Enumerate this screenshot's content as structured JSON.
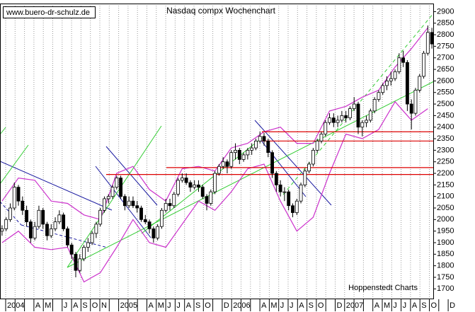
{
  "chart_data": {
    "type": "candlestick",
    "title": "Nasdaq compx Wochenchart",
    "watermark": "www.buero-dr-schulz.de",
    "source": "Hoppenstedt Charts",
    "categories": [
      "2004",
      null,
      null,
      "A",
      "M",
      null,
      "J",
      "A",
      "S",
      "O",
      "N",
      null,
      "2005",
      null,
      null,
      "A",
      "M",
      "J",
      "J",
      "A",
      "S",
      "O",
      null,
      "D",
      "2006",
      null,
      null,
      "A",
      "M",
      "J",
      "J",
      "A",
      "S",
      "O",
      null,
      "D",
      "2007",
      null,
      null,
      "A",
      "M",
      "J",
      "J",
      "A",
      "S",
      "O",
      null,
      "D"
    ],
    "ylim": [
      1655,
      2935
    ],
    "yticks": [
      1700,
      1750,
      1800,
      1850,
      1900,
      1950,
      2000,
      2050,
      2100,
      2150,
      2200,
      2250,
      2300,
      2350,
      2400,
      2450,
      2500,
      2550,
      2600,
      2650,
      2700,
      2750,
      2800,
      2850,
      2900
    ],
    "grid": true,
    "up_color": "#ffffff",
    "down_color": "#000000",
    "band_color": "#cc33cc",
    "level_color": "#dd0000",
    "ohlc": [
      [
        1950,
        1975,
        1930,
        1960
      ],
      [
        1960,
        2010,
        1950,
        2000
      ],
      [
        2000,
        2070,
        1990,
        2050
      ],
      [
        2050,
        2160,
        2040,
        2140
      ],
      [
        2140,
        2150,
        2060,
        2080
      ],
      [
        2080,
        2100,
        2020,
        2040
      ],
      [
        2040,
        2060,
        1970,
        1990
      ],
      [
        1990,
        2000,
        1900,
        1920
      ],
      [
        1920,
        1990,
        1910,
        1970
      ],
      [
        1970,
        2060,
        1960,
        2040
      ],
      [
        2040,
        2050,
        1960,
        1980
      ],
      [
        1980,
        1990,
        1910,
        1930
      ],
      [
        1930,
        1980,
        1920,
        1960
      ],
      [
        1960,
        2010,
        1950,
        1990
      ],
      [
        1990,
        2040,
        1980,
        2020
      ],
      [
        2020,
        2030,
        1950,
        1960
      ],
      [
        1960,
        1970,
        1880,
        1890
      ],
      [
        1890,
        1900,
        1830,
        1850
      ],
      [
        1850,
        1860,
        1750,
        1780
      ],
      [
        1780,
        1850,
        1770,
        1830
      ],
      [
        1830,
        1890,
        1820,
        1880
      ],
      [
        1880,
        1920,
        1860,
        1900
      ],
      [
        1900,
        1950,
        1890,
        1940
      ],
      [
        1940,
        1990,
        1920,
        1980
      ],
      [
        1980,
        2050,
        1970,
        2040
      ],
      [
        2040,
        2100,
        2030,
        2090
      ],
      [
        2090,
        2110,
        2070,
        2100
      ],
      [
        2100,
        2150,
        2090,
        2140
      ],
      [
        2140,
        2190,
        2130,
        2180
      ],
      [
        2180,
        2190,
        2090,
        2100
      ],
      [
        2100,
        2110,
        2040,
        2060
      ],
      [
        2060,
        2100,
        2050,
        2080
      ],
      [
        2080,
        2100,
        2050,
        2060
      ],
      [
        2060,
        2080,
        2030,
        2050
      ],
      [
        2050,
        2060,
        1990,
        2000
      ],
      [
        2000,
        2020,
        1980,
        1990
      ],
      [
        1990,
        2000,
        1940,
        1960
      ],
      [
        1960,
        1970,
        1900,
        1920
      ],
      [
        1920,
        1980,
        1910,
        1970
      ],
      [
        1970,
        2050,
        1960,
        2040
      ],
      [
        2040,
        2090,
        2030,
        2070
      ],
      [
        2070,
        2090,
        2040,
        2060
      ],
      [
        2060,
        2120,
        2050,
        2110
      ],
      [
        2110,
        2180,
        2100,
        2170
      ],
      [
        2170,
        2200,
        2160,
        2180
      ],
      [
        2180,
        2200,
        2150,
        2160
      ],
      [
        2160,
        2170,
        2120,
        2140
      ],
      [
        2140,
        2170,
        2130,
        2150
      ],
      [
        2150,
        2170,
        2120,
        2140
      ],
      [
        2140,
        2150,
        2090,
        2100
      ],
      [
        2100,
        2110,
        2040,
        2070
      ],
      [
        2070,
        2130,
        2060,
        2120
      ],
      [
        2120,
        2210,
        2110,
        2200
      ],
      [
        2200,
        2240,
        2190,
        2230
      ],
      [
        2230,
        2270,
        2220,
        2250
      ],
      [
        2250,
        2260,
        2200,
        2230
      ],
      [
        2230,
        2300,
        2220,
        2290
      ],
      [
        2290,
        2330,
        2260,
        2300
      ],
      [
        2300,
        2310,
        2240,
        2260
      ],
      [
        2260,
        2290,
        2250,
        2280
      ],
      [
        2280,
        2310,
        2260,
        2300
      ],
      [
        2300,
        2330,
        2280,
        2310
      ],
      [
        2310,
        2350,
        2300,
        2340
      ],
      [
        2340,
        2380,
        2330,
        2360
      ],
      [
        2360,
        2375,
        2320,
        2340
      ],
      [
        2340,
        2350,
        2270,
        2290
      ],
      [
        2290,
        2300,
        2180,
        2200
      ],
      [
        2200,
        2210,
        2120,
        2150
      ],
      [
        2150,
        2170,
        2100,
        2120
      ],
      [
        2120,
        2140,
        2080,
        2120
      ],
      [
        2120,
        2130,
        2040,
        2060
      ],
      [
        2060,
        2070,
        2010,
        2030
      ],
      [
        2030,
        2090,
        2020,
        2080
      ],
      [
        2080,
        2160,
        2070,
        2150
      ],
      [
        2150,
        2220,
        2140,
        2210
      ],
      [
        2210,
        2250,
        2200,
        2240
      ],
      [
        2240,
        2310,
        2230,
        2300
      ],
      [
        2300,
        2350,
        2290,
        2340
      ],
      [
        2340,
        2380,
        2330,
        2370
      ],
      [
        2370,
        2430,
        2360,
        2420
      ],
      [
        2420,
        2460,
        2410,
        2440
      ],
      [
        2440,
        2460,
        2400,
        2420
      ],
      [
        2420,
        2450,
        2400,
        2430
      ],
      [
        2430,
        2470,
        2420,
        2450
      ],
      [
        2450,
        2470,
        2420,
        2440
      ],
      [
        2440,
        2490,
        2430,
        2480
      ],
      [
        2480,
        2530,
        2470,
        2500
      ],
      [
        2500,
        2510,
        2370,
        2400
      ],
      [
        2400,
        2430,
        2360,
        2420
      ],
      [
        2420,
        2450,
        2400,
        2430
      ],
      [
        2430,
        2480,
        2420,
        2470
      ],
      [
        2470,
        2530,
        2460,
        2520
      ],
      [
        2520,
        2560,
        2510,
        2550
      ],
      [
        2550,
        2590,
        2540,
        2580
      ],
      [
        2580,
        2620,
        2560,
        2600
      ],
      [
        2600,
        2640,
        2580,
        2610
      ],
      [
        2610,
        2650,
        2600,
        2640
      ],
      [
        2640,
        2720,
        2630,
        2700
      ],
      [
        2700,
        2730,
        2660,
        2680
      ],
      [
        2680,
        2690,
        2470,
        2500
      ],
      [
        2500,
        2520,
        2390,
        2460
      ],
      [
        2460,
        2570,
        2450,
        2560
      ],
      [
        2560,
        2630,
        2550,
        2620
      ],
      [
        2620,
        2730,
        2610,
        2720
      ],
      [
        2720,
        2840,
        2710,
        2810
      ],
      [
        2810,
        2830,
        2740,
        2760
      ]
    ],
    "bands": {
      "upper": [
        2080,
        2180,
        2170,
        2080,
        2070,
        2020,
        2000,
        2200,
        2230,
        2130,
        2080,
        2220,
        2230,
        2210,
        2310,
        2330,
        2380,
        2400,
        2330,
        2330,
        2470,
        2490,
        2530,
        2560,
        2660,
        2740,
        2830
      ],
      "lower": [
        1900,
        1950,
        1880,
        1870,
        1880,
        1730,
        1770,
        1880,
        2000,
        1900,
        1880,
        1980,
        2080,
        2040,
        2120,
        2220,
        2240,
        2080,
        1950,
        2010,
        2200,
        2370,
        2350,
        2390,
        2510,
        2430,
        2480
      ]
    },
    "levels": [
      2380,
      2340,
      2225,
      2195
    ]
  }
}
